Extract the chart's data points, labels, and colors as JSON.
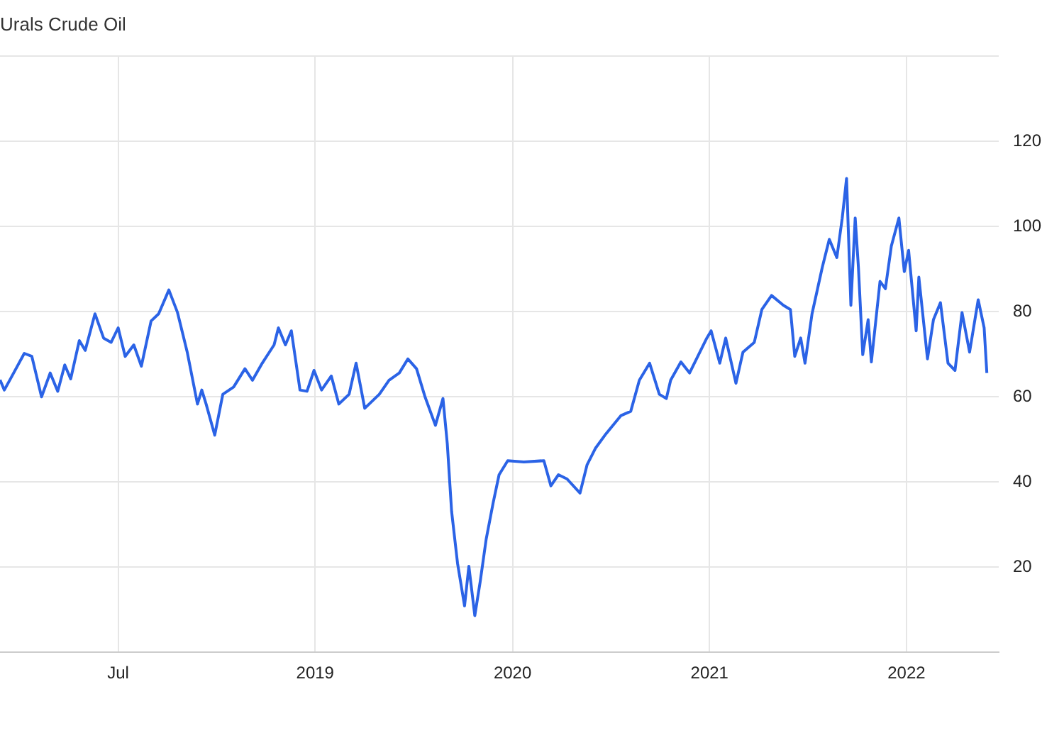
{
  "chart_data": {
    "type": "line",
    "title": "Urals Crude Oil",
    "x": [
      "2017-11-24",
      "2017-12-02",
      "2017-12-15",
      "2018-01-08",
      "2018-01-22",
      "2018-02-09",
      "2018-02-25",
      "2018-03-11",
      "2018-03-24",
      "2018-04-04",
      "2018-04-20",
      "2018-05-01",
      "2018-05-19",
      "2018-06-04",
      "2018-06-18",
      "2018-07-01",
      "2018-07-14",
      "2018-07-30",
      "2018-08-13",
      "2018-08-31",
      "2018-09-14",
      "2018-10-03",
      "2018-10-19",
      "2018-11-06",
      "2018-11-25",
      "2018-12-03",
      "2018-12-11",
      "2018-12-27",
      "2019-01-11",
      "2019-01-31",
      "2019-02-21",
      "2019-03-07",
      "2019-03-25",
      "2019-04-16",
      "2019-04-24",
      "2019-05-07",
      "2019-05-18",
      "2019-06-03",
      "2019-06-16",
      "2019-06-29",
      "2019-07-13",
      "2019-07-31",
      "2019-08-14",
      "2019-09-02",
      "2019-09-15",
      "2019-10-01",
      "2019-10-28",
      "2019-11-15",
      "2019-12-04",
      "2019-12-20",
      "2020-01-05",
      "2020-01-21",
      "2020-02-09",
      "2020-02-23",
      "2020-03-02",
      "2020-03-10",
      "2020-03-21",
      "2020-04-03",
      "2020-04-11",
      "2020-04-22",
      "2020-05-02",
      "2020-05-13",
      "2020-05-26",
      "2020-06-06",
      "2020-06-22",
      "2020-07-22",
      "2020-08-28",
      "2020-09-10",
      "2020-09-24",
      "2020-10-10",
      "2020-11-03",
      "2020-11-16",
      "2020-12-02",
      "2020-12-21",
      "2021-01-18",
      "2021-02-05",
      "2021-02-21",
      "2021-03-12",
      "2021-03-30",
      "2021-04-12",
      "2021-04-20",
      "2021-05-09",
      "2021-05-25",
      "2021-06-26",
      "2021-07-04",
      "2021-07-20",
      "2021-07-31",
      "2021-08-19",
      "2021-09-01",
      "2021-09-22",
      "2021-10-06",
      "2021-10-24",
      "2021-11-15",
      "2021-11-28",
      "2021-12-06",
      "2021-12-17",
      "2021-12-25",
      "2022-01-07",
      "2022-01-26",
      "2022-02-08",
      "2022-02-22",
      "2022-03-04",
      "2022-03-12",
      "2022-03-20",
      "2022-03-28",
      "2022-04-03",
      "2022-04-11",
      "2022-04-21",
      "2022-04-27",
      "2022-05-13",
      "2022-05-23",
      "2022-06-03",
      "2022-06-17",
      "2022-06-27",
      "2022-07-05",
      "2022-07-19",
      "2022-07-24",
      "2022-08-09",
      "2022-08-20",
      "2022-09-02",
      "2022-09-16",
      "2022-09-29",
      "2022-10-12",
      "2022-10-26",
      "2022-11-11",
      "2022-11-22",
      "2022-11-27"
    ],
    "series": [
      {
        "color": "#2b63e6",
        "values": [
          64,
          61.6,
          64.6,
          70.2,
          69.5,
          60,
          65.6,
          61.3,
          67.5,
          64.2,
          73.2,
          70.9,
          79.5,
          73.8,
          72.8,
          76.2,
          69.5,
          72.2,
          67.2,
          77.8,
          79.5,
          85.1,
          79.8,
          70.5,
          58.3,
          61.6,
          58.3,
          51,
          60.6,
          62.3,
          66.6,
          63.9,
          67.9,
          72.2,
          76.2,
          72.2,
          75.5,
          61.6,
          61.3,
          66.2,
          61.6,
          64.9,
          58.3,
          60.6,
          67.9,
          57.3,
          60.6,
          63.9,
          65.6,
          68.9,
          66.6,
          59.9,
          53.3,
          59.6,
          49,
          33.1,
          20.9,
          10.9,
          20.2,
          8.6,
          16.6,
          26.5,
          35.1,
          41.7,
          45,
          44.7,
          45,
          39.1,
          41.7,
          40.7,
          37.4,
          44,
          48,
          51.3,
          55.6,
          56.6,
          63.9,
          67.9,
          60.6,
          59.6,
          63.9,
          68.2,
          65.6,
          73.8,
          75.5,
          67.9,
          73.8,
          63.2,
          70.5,
          72.8,
          80.5,
          83.8,
          81.5,
          80.5,
          69.5,
          73.8,
          67.9,
          79.5,
          90.4,
          97,
          92.7,
          102,
          111.3,
          81.5,
          102,
          90.4,
          69.9,
          78.1,
          68.2,
          87.1,
          85.4,
          95.4,
          102,
          89.4,
          94.4,
          75.5,
          88.1,
          68.9,
          78.1,
          82.1,
          67.9,
          66.2,
          79.8,
          70.5,
          82.8,
          76.2,
          65.6
        ]
      }
    ],
    "xlim": [
      "2017-11-24",
      "2022-12-19"
    ],
    "xticks": [
      {
        "value": "2018-07-01",
        "label": "Jul"
      },
      {
        "value": "2019-07-01",
        "label": "2019"
      },
      {
        "value": "2020-07-01",
        "label": "2020"
      },
      {
        "value": "2021-07-01",
        "label": "2021"
      },
      {
        "value": "2022-07-01",
        "label": "2022"
      }
    ],
    "ylim": [
      0,
      140
    ],
    "yticks": [
      {
        "value": 0,
        "label": null
      },
      20,
      40,
      60,
      80,
      100,
      120,
      {
        "value": 140,
        "label": null
      }
    ],
    "grid": true,
    "legend": false,
    "marker": "none",
    "line_style": "solid"
  }
}
